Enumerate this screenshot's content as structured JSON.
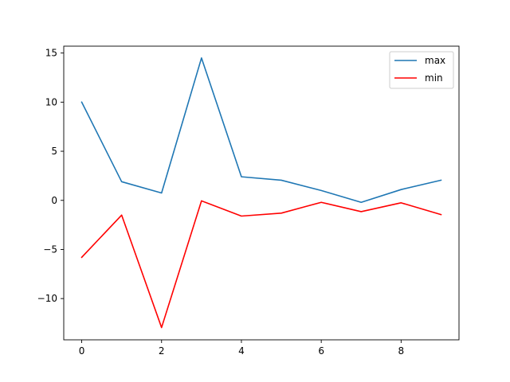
{
  "chart_data": {
    "type": "line",
    "title": "",
    "xlabel": "",
    "ylabel": "",
    "x": [
      0,
      1,
      2,
      3,
      4,
      5,
      6,
      7,
      8,
      9
    ],
    "xlim": [
      -0.45,
      9.45
    ],
    "ylim": [
      -14.2,
      15.7
    ],
    "xticks": [
      0,
      2,
      4,
      6,
      8
    ],
    "xtick_labels": [
      "0",
      "2",
      "4",
      "6",
      "8"
    ],
    "yticks": [
      -10,
      -5,
      0,
      5,
      10,
      15
    ],
    "ytick_labels": [
      "−10",
      "−5",
      "0",
      "5",
      "10",
      "15"
    ],
    "grid": false,
    "legend_position": "top-right",
    "series": [
      {
        "name": "max",
        "color": "#1f77b4",
        "values": [
          10.0,
          1.9,
          0.75,
          14.5,
          2.4,
          2.05,
          1.0,
          -0.2,
          1.1,
          2.05
        ]
      },
      {
        "name": "min",
        "color": "#ff0000",
        "values": [
          -5.8,
          -1.5,
          -12.95,
          -0.05,
          -1.6,
          -1.3,
          -0.2,
          -1.15,
          -0.25,
          -1.45
        ]
      }
    ]
  }
}
